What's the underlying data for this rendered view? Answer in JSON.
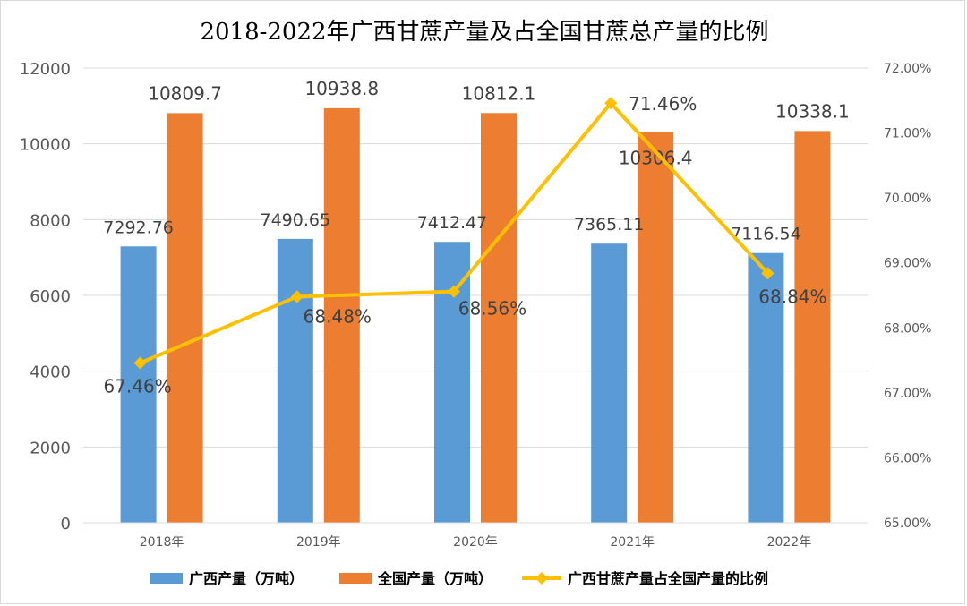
{
  "chart_data": {
    "type": "bar",
    "title": "2018-2022年广西甘蔗产量及占全国甘蔗总产量的比例",
    "categories": [
      "2018年",
      "2019年",
      "2020年",
      "2021年",
      "2022年"
    ],
    "series": [
      {
        "name": "广西产量（万吨）",
        "type": "bar",
        "axis": "left",
        "color": "#5b9bd5",
        "values": [
          7292.76,
          7490.65,
          7412.47,
          7365.11,
          7116.54
        ],
        "labels": [
          "7292.76",
          "7490.65",
          "7412.47",
          "7365.11",
          "7116.54"
        ]
      },
      {
        "name": "全国产量（万吨）",
        "type": "bar",
        "axis": "left",
        "color": "#ed7d31",
        "values": [
          10809.7,
          10938.8,
          10812.1,
          10306.4,
          10338.1
        ],
        "labels": [
          "10809.7",
          "10938.8",
          "10812.1",
          "10306.4",
          "10338.1"
        ]
      },
      {
        "name": "广西甘蔗产量占全国产量的比例",
        "type": "line",
        "axis": "right",
        "color": "#ffc000",
        "values": [
          67.46,
          68.48,
          68.56,
          71.46,
          68.84
        ],
        "labels": [
          "67.46%",
          "68.48%",
          "68.56%",
          "71.46%",
          "68.84%"
        ]
      }
    ],
    "y_left": {
      "ylim": [
        0,
        12000
      ],
      "ticks": [
        "0",
        "2000",
        "4000",
        "6000",
        "8000",
        "10000",
        "12000"
      ]
    },
    "y_right": {
      "ylim": [
        65,
        72
      ],
      "ticks": [
        "65.00%",
        "66.00%",
        "67.00%",
        "68.00%",
        "69.00%",
        "70.00%",
        "71.00%",
        "72.00%"
      ]
    },
    "grid": true,
    "legend_position": "bottom"
  }
}
